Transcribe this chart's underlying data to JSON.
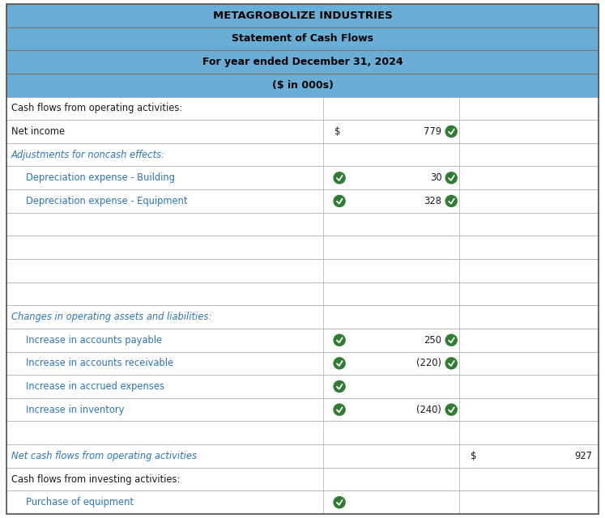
{
  "title1": "METAGROBOLIZE INDUSTRIES",
  "title2": "Statement of Cash Flows",
  "title3": "For year ended December 31, 2024",
  "title4": "($ in 000s)",
  "header_bg": "#6aaed6",
  "row_bg_white": "#ffffff",
  "border_color": "#888888",
  "text_color_black": "#1a1a1a",
  "text_color_blue": "#2e75b6",
  "check_color": "#2e7d32",
  "rows": [
    {
      "label": "Cash flows from operating activities:",
      "indent": 0,
      "col1_left_check": false,
      "col1_val": "",
      "col1_dollar": false,
      "col1_check": false,
      "col2_val": "",
      "col2_dollar": false,
      "italic": false,
      "bold": false
    },
    {
      "label": "Net income",
      "indent": 0,
      "col1_left_check": false,
      "col1_val": "779",
      "col1_dollar": true,
      "col1_check": true,
      "col2_val": "",
      "col2_dollar": false,
      "italic": false,
      "bold": false
    },
    {
      "label": "Adjustments for noncash effects:",
      "indent": 0,
      "col1_left_check": false,
      "col1_val": "",
      "col1_dollar": false,
      "col1_check": false,
      "col2_val": "",
      "col2_dollar": false,
      "italic": true,
      "bold": false
    },
    {
      "label": "Depreciation expense - Building",
      "indent": 1,
      "col1_left_check": true,
      "col1_val": "30",
      "col1_dollar": false,
      "col1_check": true,
      "col2_val": "",
      "col2_dollar": false,
      "italic": false,
      "bold": false
    },
    {
      "label": "Depreciation expense - Equipment",
      "indent": 1,
      "col1_left_check": true,
      "col1_val": "328",
      "col1_dollar": false,
      "col1_check": true,
      "col2_val": "",
      "col2_dollar": false,
      "italic": false,
      "bold": false
    },
    {
      "label": "",
      "indent": 0,
      "col1_left_check": false,
      "col1_val": "",
      "col1_dollar": false,
      "col1_check": false,
      "col2_val": "",
      "col2_dollar": false,
      "italic": false,
      "bold": false
    },
    {
      "label": "",
      "indent": 0,
      "col1_left_check": false,
      "col1_val": "",
      "col1_dollar": false,
      "col1_check": false,
      "col2_val": "",
      "col2_dollar": false,
      "italic": false,
      "bold": false
    },
    {
      "label": "",
      "indent": 0,
      "col1_left_check": false,
      "col1_val": "",
      "col1_dollar": false,
      "col1_check": false,
      "col2_val": "",
      "col2_dollar": false,
      "italic": false,
      "bold": false
    },
    {
      "label": "",
      "indent": 0,
      "col1_left_check": false,
      "col1_val": "",
      "col1_dollar": false,
      "col1_check": false,
      "col2_val": "",
      "col2_dollar": false,
      "italic": false,
      "bold": false
    },
    {
      "label": "Changes in operating assets and liabilities:",
      "indent": 0,
      "col1_left_check": false,
      "col1_val": "",
      "col1_dollar": false,
      "col1_check": false,
      "col2_val": "",
      "col2_dollar": false,
      "italic": true,
      "bold": false
    },
    {
      "label": "Increase in accounts payable",
      "indent": 1,
      "col1_left_check": true,
      "col1_val": "250",
      "col1_dollar": false,
      "col1_check": true,
      "col2_val": "",
      "col2_dollar": false,
      "italic": false,
      "bold": false
    },
    {
      "label": "Increase in accounts receivable",
      "indent": 1,
      "col1_left_check": true,
      "col1_val": "(220)",
      "col1_dollar": false,
      "col1_check": true,
      "col2_val": "",
      "col2_dollar": false,
      "italic": false,
      "bold": false
    },
    {
      "label": "Increase in accrued expenses",
      "indent": 1,
      "col1_left_check": true,
      "col1_val": "",
      "col1_dollar": false,
      "col1_check": false,
      "col2_val": "",
      "col2_dollar": false,
      "italic": false,
      "bold": false
    },
    {
      "label": "Increase in inventory",
      "indent": 1,
      "col1_left_check": true,
      "col1_val": "(240)",
      "col1_dollar": false,
      "col1_check": true,
      "col2_val": "",
      "col2_dollar": false,
      "italic": false,
      "bold": false
    },
    {
      "label": "",
      "indent": 0,
      "col1_left_check": false,
      "col1_val": "",
      "col1_dollar": false,
      "col1_check": false,
      "col2_val": "",
      "col2_dollar": false,
      "italic": false,
      "bold": false
    },
    {
      "label": "Net cash flows from operating activities",
      "indent": 0,
      "col1_left_check": false,
      "col1_val": "",
      "col1_dollar": false,
      "col1_check": false,
      "col2_val": "927",
      "col2_dollar": true,
      "italic": true,
      "bold": false
    },
    {
      "label": "Cash flows from investing activities:",
      "indent": 0,
      "col1_left_check": false,
      "col1_val": "",
      "col1_dollar": false,
      "col1_check": false,
      "col2_val": "",
      "col2_dollar": false,
      "italic": false,
      "bold": false
    },
    {
      "label": "Purchase of equipment",
      "indent": 1,
      "col1_left_check": true,
      "col1_val": "",
      "col1_dollar": false,
      "col1_check": false,
      "col2_val": "",
      "col2_dollar": false,
      "italic": false,
      "bold": false
    }
  ]
}
